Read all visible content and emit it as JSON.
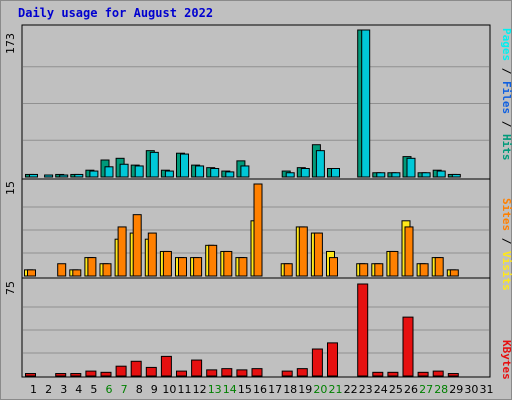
{
  "header": {
    "title": "Daily usage for August 2022"
  },
  "colors": {
    "hits": "#009a7a",
    "files": "#00c8d8",
    "pages": "#00f0f0",
    "visits": "#ffe81a",
    "sites": "#ff8000",
    "kbytes": "#e61010",
    "weekend_day": "#008000",
    "weekday": "#000000",
    "gridline": "#909090",
    "plot_bg": "#c0c0c0"
  },
  "chart_data": [
    {
      "type": "bar",
      "title": "Daily usage for August 2022",
      "legend": [
        {
          "name": "Pages",
          "color": "#00f0f0"
        },
        {
          "name": "Files",
          "color": "#1060e0"
        },
        {
          "name": "Hits",
          "color": "#009a7a"
        }
      ],
      "legend_separators": [
        "/",
        "/"
      ],
      "max_label": "173",
      "ylim": [
        0,
        173
      ],
      "grid": true,
      "categories": [
        "1",
        "2",
        "3",
        "4",
        "5",
        "6",
        "7",
        "8",
        "9",
        "10",
        "11",
        "12",
        "13",
        "14",
        "15",
        "16",
        "17",
        "18",
        "19",
        "20",
        "21",
        "22",
        "23",
        "24",
        "25",
        "26",
        "27",
        "28",
        "29",
        "30",
        "31"
      ],
      "series": [
        {
          "name": "Hits",
          "color": "#009a7a",
          "values": [
            3,
            0,
            3,
            3,
            8,
            20,
            22,
            14,
            31,
            8,
            28,
            14,
            11,
            7,
            19,
            0,
            0,
            7,
            11,
            38,
            10,
            0,
            173,
            5,
            5,
            24,
            5,
            8,
            3,
            0,
            0
          ]
        },
        {
          "name": "Files",
          "color": "#00c8d8",
          "values": [
            3,
            2,
            2,
            3,
            7,
            12,
            15,
            13,
            29,
            7,
            27,
            13,
            10,
            6,
            13,
            0,
            0,
            5,
            10,
            31,
            10,
            0,
            173,
            5,
            5,
            22,
            5,
            7,
            3,
            0,
            0
          ]
        }
      ]
    },
    {
      "type": "bar",
      "legend": [
        {
          "name": "Sites",
          "color": "#ff8000"
        },
        {
          "name": "Visits",
          "color": "#ffe81a"
        }
      ],
      "legend_separators": [
        "/"
      ],
      "max_label": "15",
      "ylim": [
        0,
        15
      ],
      "grid": true,
      "categories": [
        "1",
        "2",
        "3",
        "4",
        "5",
        "6",
        "7",
        "8",
        "9",
        "10",
        "11",
        "12",
        "13",
        "14",
        "15",
        "16",
        "17",
        "18",
        "19",
        "20",
        "21",
        "22",
        "23",
        "24",
        "25",
        "26",
        "27",
        "28",
        "29",
        "30",
        "31"
      ],
      "series": [
        {
          "name": "Visits",
          "color": "#ffe81a",
          "values": [
            1,
            0,
            0,
            1,
            3,
            2,
            6,
            7,
            6,
            4,
            3,
            3,
            5,
            4,
            3,
            9,
            0,
            2,
            8,
            7,
            4,
            0,
            2,
            2,
            4,
            9,
            2,
            3,
            1,
            0,
            0
          ]
        },
        {
          "name": "Sites",
          "color": "#ff8000",
          "values": [
            1,
            0,
            2,
            1,
            3,
            2,
            8,
            10,
            7,
            4,
            3,
            3,
            5,
            4,
            3,
            15,
            0,
            2,
            8,
            7,
            3,
            0,
            2,
            2,
            4,
            8,
            2,
            3,
            1,
            0,
            0
          ]
        }
      ]
    },
    {
      "type": "bar",
      "legend": [
        {
          "name": "KBytes",
          "color": "#e61010"
        }
      ],
      "legend_separators": [],
      "max_label": "75",
      "ylim": [
        0,
        75
      ],
      "grid": true,
      "categories": [
        "1",
        "2",
        "3",
        "4",
        "5",
        "6",
        "7",
        "8",
        "9",
        "10",
        "11",
        "12",
        "13",
        "14",
        "15",
        "16",
        "17",
        "18",
        "19",
        "20",
        "21",
        "22",
        "23",
        "24",
        "25",
        "26",
        "27",
        "28",
        "29",
        "30",
        "31"
      ],
      "series": [
        {
          "name": "KBytes",
          "color": "#e61010",
          "values": [
            2,
            0,
            2,
            2,
            4,
            3,
            8,
            12,
            7,
            16,
            4,
            13,
            5,
            6,
            5,
            6,
            0,
            4,
            6,
            22,
            27,
            0,
            75,
            3,
            3,
            48,
            3,
            4,
            2,
            0,
            0
          ]
        }
      ]
    }
  ],
  "x_axis": {
    "day_labels": [
      "1",
      "2",
      "3",
      "4",
      "5",
      "6",
      "7",
      "8",
      "9",
      "10",
      "11",
      "12",
      "13",
      "14",
      "15",
      "16",
      "17",
      "18",
      "19",
      "20",
      "21",
      "22",
      "23",
      "24",
      "25",
      "26",
      "27",
      "28",
      "29",
      "30",
      "31"
    ],
    "weekend_days": [
      6,
      7,
      13,
      14,
      20,
      21,
      27,
      28
    ]
  }
}
